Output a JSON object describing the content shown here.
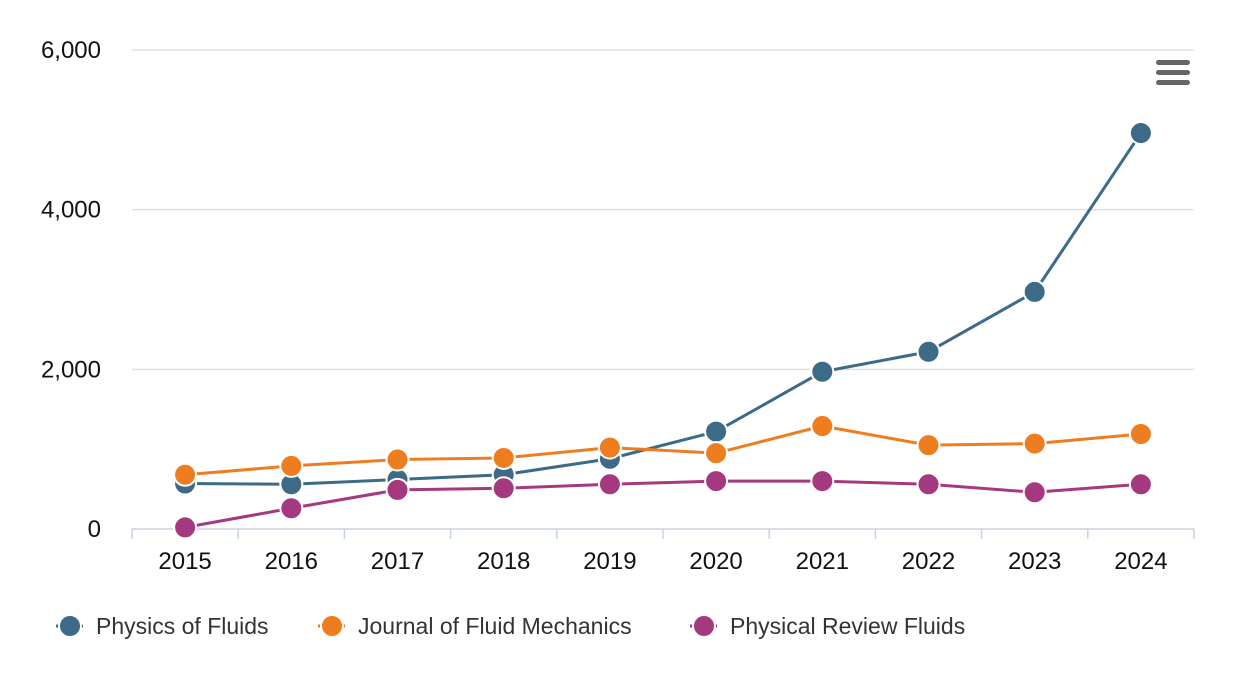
{
  "chart_data": {
    "type": "line",
    "title": "",
    "xlabel": "",
    "ylabel": "",
    "categories": [
      "2015",
      "2016",
      "2017",
      "2018",
      "2019",
      "2020",
      "2021",
      "2022",
      "2023",
      "2024"
    ],
    "ylim": [
      0,
      6000
    ],
    "yticks": [
      0,
      2000,
      4000,
      6000
    ],
    "ytick_labels": [
      "0",
      "2,000",
      "4,000",
      "6,000"
    ],
    "grid": true,
    "legend_position": "bottom-left",
    "series": [
      {
        "name": "Physics of Fluids",
        "color": "#3d6a87",
        "values": [
          570,
          560,
          620,
          680,
          880,
          1220,
          1970,
          2220,
          2970,
          4960
        ]
      },
      {
        "name": "Journal of Fluid Mechanics",
        "color": "#ed7d1f",
        "values": [
          680,
          790,
          870,
          890,
          1020,
          950,
          1290,
          1050,
          1070,
          1190
        ]
      },
      {
        "name": "Physical Review Fluids",
        "color": "#a4397f",
        "values": [
          20,
          260,
          490,
          510,
          560,
          600,
          600,
          560,
          460,
          560
        ]
      }
    ]
  },
  "menu": {
    "icon": "hamburger-menu-icon"
  }
}
